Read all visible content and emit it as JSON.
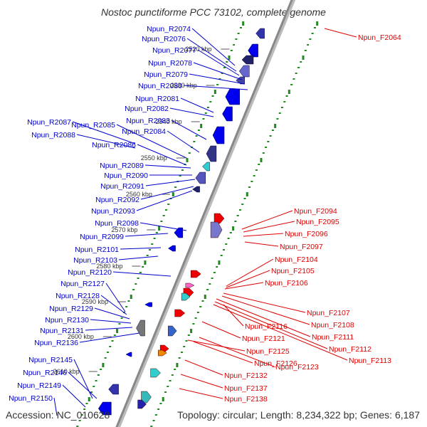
{
  "title": "Nostoc punctiforme PCC 73102, complete genome",
  "footer": {
    "accession": "Accession: NC_010628",
    "summary": "Topology: circular; Length: 8,234,322 bp; Genes: 6,187"
  },
  "colors": {
    "reverse_label": "#0000cc",
    "forward_label": "#dd0000",
    "backbone": "#888888",
    "tick_green": "#228822",
    "gene_blue": "#0000ee",
    "gene_red": "#ee0000"
  },
  "scale_labels": [
    "2520 kbp",
    "2530 kbp",
    "2540 kbp",
    "2550 kbp",
    "2560 kbp",
    "2570 kbp",
    "2580 kbp",
    "2590 kbp",
    "2600 kbp",
    "2610 kbp"
  ],
  "reverse_genes": [
    "Npun_R2074",
    "Npun_R2076",
    "Npun_R2077",
    "Npun_R2078",
    "Npun_R2079",
    "Npun_R2080",
    "Npun_R2081",
    "Npun_R2082",
    "Npun_R2083",
    "Npun_R2084",
    "Npun_R2085",
    "Npun_R2086",
    "Npun_R2087",
    "Npun_R2088",
    "Npun_R2089",
    "Npun_R2090",
    "Npun_R2091",
    "Npun_R2092",
    "Npun_R2093",
    "Npun_R2098",
    "Npun_R2099",
    "Npun_R2101",
    "Npun_R2103",
    "Npun_R2120",
    "Npun_R2127",
    "Npun_R2128",
    "Npun_R2129",
    "Npun_R2130",
    "Npun_R2131",
    "Npun_R2136",
    "Npun_R2145",
    "Npun_R2146",
    "Npun_R2149",
    "Npun_R2150"
  ],
  "forward_genes": [
    "Npun_F2064",
    "Npun_F2094",
    "Npun_F2095",
    "Npun_F2096",
    "Npun_F2097",
    "Npun_F2104",
    "Npun_F2105",
    "Npun_F2106",
    "Npun_F2107",
    "Npun_F2108",
    "Npun_F2111",
    "Npun_F2112",
    "Npun_F2113",
    "Npun_F2116",
    "Npun_F2121",
    "Npun_F2123",
    "Npun_F2125",
    "Npun_F2126",
    "Npun_F2132",
    "Npun_F2137",
    "Npun_F2138"
  ]
}
